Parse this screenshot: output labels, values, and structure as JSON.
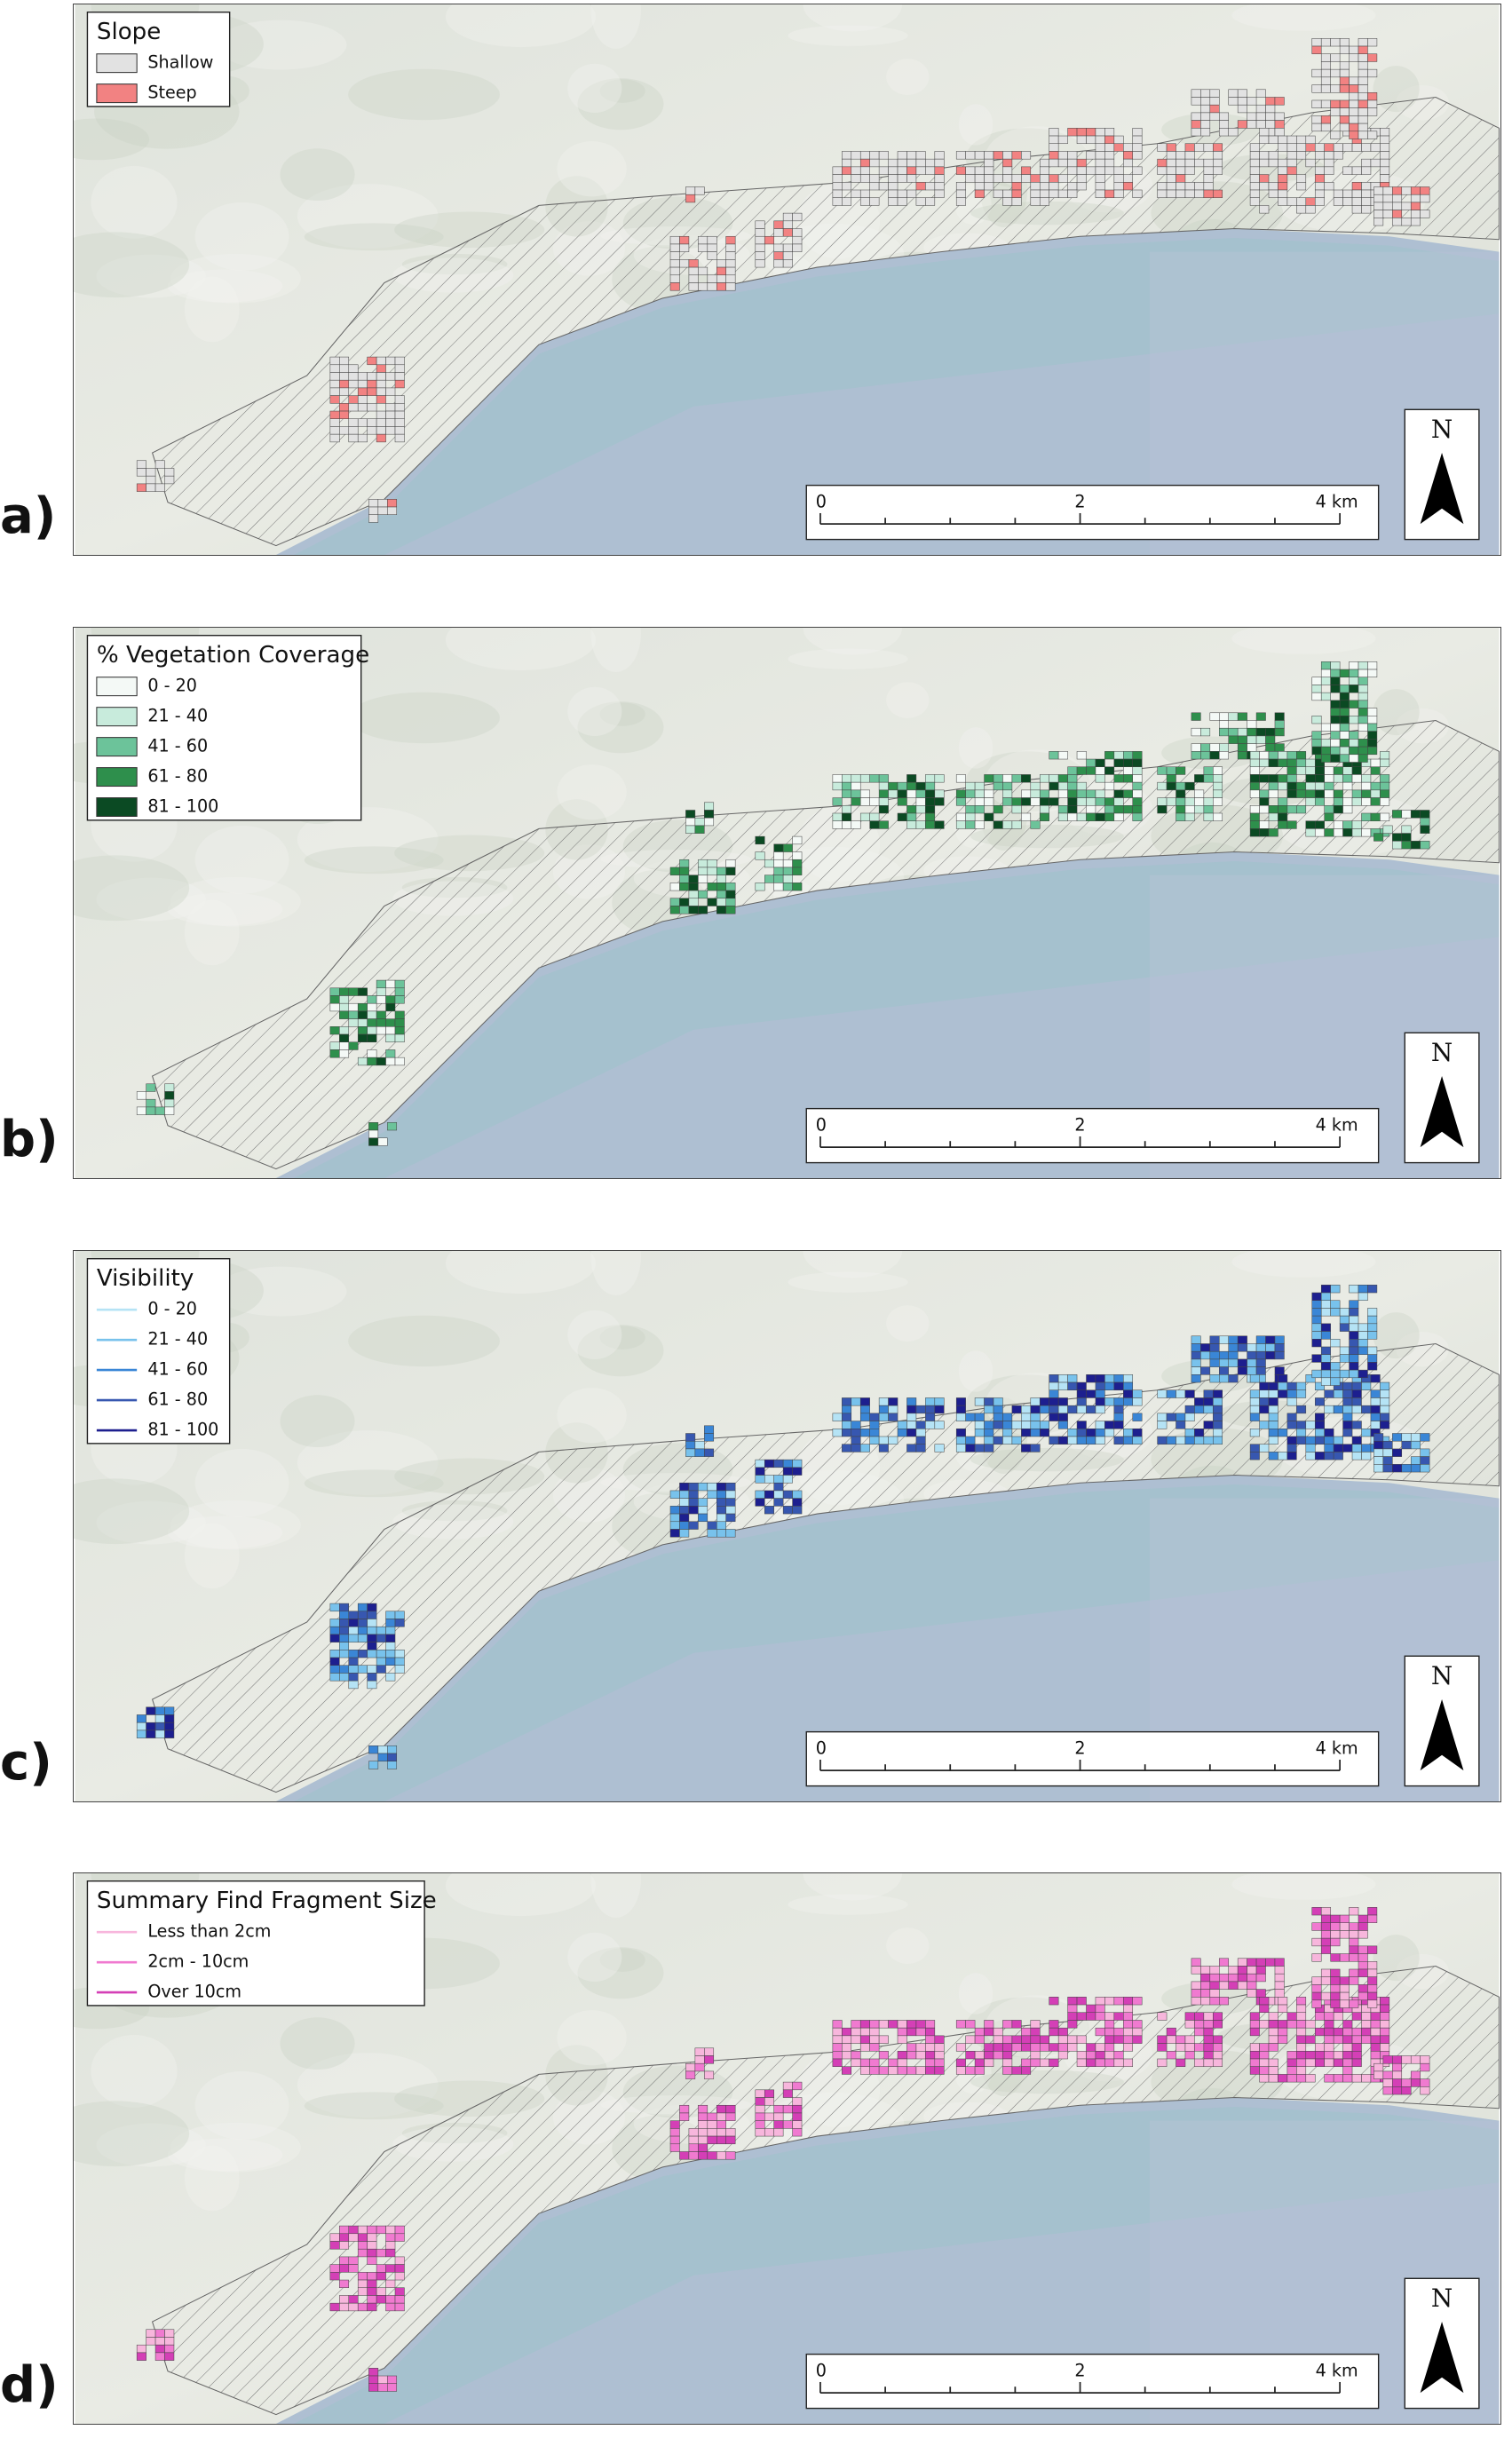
{
  "panels": [
    {
      "label": "a)",
      "legend": {
        "title": "Slope",
        "swatch": "rect",
        "items": [
          {
            "label": "Shallow",
            "color": "#e2e2e2"
          },
          {
            "label": "Steep",
            "color": "#f28282"
          }
        ]
      }
    },
    {
      "label": "b)",
      "legend": {
        "title": "% Vegetation Coverage",
        "swatch": "rect",
        "items": [
          {
            "label": "0 - 20",
            "color": "#f4f9f6"
          },
          {
            "label": "21 - 40",
            "color": "#c8ebdc"
          },
          {
            "label": "41 - 60",
            "color": "#6cc39a"
          },
          {
            "label": "61 - 80",
            "color": "#2e8f4c"
          },
          {
            "label": "81 - 100",
            "color": "#0b4a23"
          }
        ]
      }
    },
    {
      "label": "c)",
      "legend": {
        "title": "Visibility",
        "swatch": "line",
        "items": [
          {
            "label": "0 - 20",
            "color": "#b5e3f5"
          },
          {
            "label": "21 - 40",
            "color": "#78c2ec"
          },
          {
            "label": "41 - 60",
            "color": "#3a86d6"
          },
          {
            "label": "61 - 80",
            "color": "#3757b0"
          },
          {
            "label": "81 - 100",
            "color": "#1d1f8f"
          }
        ]
      }
    },
    {
      "label": "d)",
      "legend": {
        "title": "Summary Find Fragment Size",
        "swatch": "line",
        "items": [
          {
            "label": "Less than 2cm",
            "color": "#f7b6dc"
          },
          {
            "label": "2cm - 10cm",
            "color": "#f07ad0"
          },
          {
            "label": "Over 10cm",
            "color": "#d43fb6"
          }
        ]
      }
    }
  ],
  "scale_bar": {
    "ticks": [
      "0",
      "2",
      "4 km"
    ]
  },
  "north": "N"
}
